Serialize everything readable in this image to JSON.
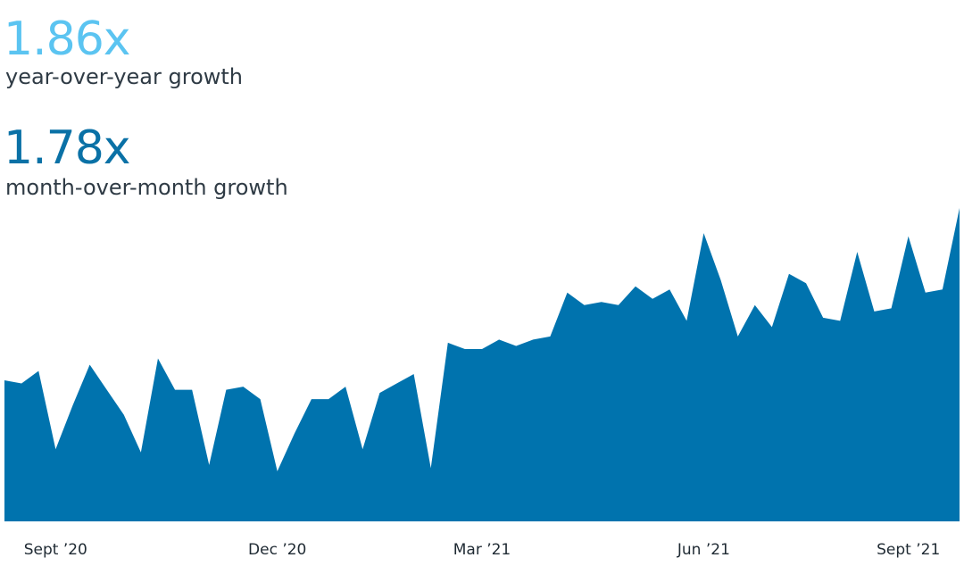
{
  "stats": {
    "yoy": {
      "value": "1.86x",
      "label": "year-over-year growth",
      "color": "#5bc4f1"
    },
    "mom": {
      "value": "1.78x",
      "label": "month-over-month growth",
      "color": "#0a71a6"
    }
  },
  "chart_data": {
    "type": "area",
    "title": "",
    "xlabel": "",
    "ylabel": "",
    "color": "#0073ae",
    "grid": false,
    "x_tick_labels": [
      "Sept ’20",
      "Dec ’20",
      "Mar ’21",
      "Jun ’21",
      "Sept ’21"
    ],
    "x_tick_index": [
      3,
      16,
      28,
      41,
      53
    ],
    "ylim": [
      0,
      100
    ],
    "values": [
      45,
      44,
      48,
      23,
      37,
      50,
      42,
      34,
      22,
      52,
      42,
      42,
      18,
      42,
      43,
      39,
      16,
      28,
      39,
      39,
      43,
      23,
      41,
      44,
      47,
      17,
      57,
      55,
      55,
      58,
      56,
      58,
      59,
      73,
      69,
      70,
      69,
      75,
      71,
      74,
      64,
      92,
      77,
      59,
      69,
      62,
      79,
      76,
      65,
      64,
      86,
      67,
      68,
      91,
      73,
      74,
      100
    ]
  }
}
